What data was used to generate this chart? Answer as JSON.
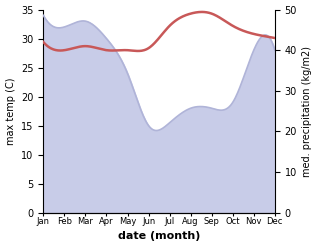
{
  "months": [
    "Jan",
    "Feb",
    "Mar",
    "Apr",
    "May",
    "Jun",
    "Jul",
    "Aug",
    "Sep",
    "Oct",
    "Nov",
    "Dec"
  ],
  "max_temp": [
    34,
    32,
    33,
    30,
    24,
    15,
    15.5,
    18,
    18,
    19,
    28,
    28
  ],
  "precipitation": [
    42,
    40,
    41,
    40,
    40,
    40.5,
    46,
    49,
    49,
    46,
    44,
    43
  ],
  "temp_ylim": [
    0,
    35
  ],
  "precip_ylim": [
    0,
    50
  ],
  "temp_color": "#b0b4d8",
  "temp_fill_color": "#c8cce8",
  "precip_color": "#c85858",
  "xlabel": "date (month)",
  "ylabel_left": "max temp (C)",
  "ylabel_right": "med. precipitation (kg/m2)",
  "bg_color": "#ffffff",
  "fig_width": 3.18,
  "fig_height": 2.47,
  "dpi": 100
}
